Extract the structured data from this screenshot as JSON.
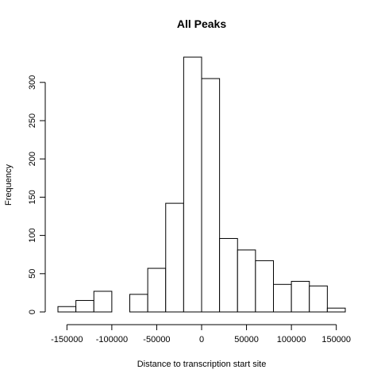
{
  "chart_data": {
    "type": "bar",
    "title": "All Peaks",
    "xlabel": "Distance to transcription start site",
    "ylabel": "Frequency",
    "xlim": [
      -160000,
      160000
    ],
    "ylim": [
      0,
      333
    ],
    "x_ticks": [
      -150000,
      -100000,
      -50000,
      0,
      50000,
      100000,
      150000
    ],
    "y_ticks": [
      0,
      50,
      100,
      150,
      200,
      250,
      300
    ],
    "bin_width": 20000,
    "bins": [
      {
        "start": -160000,
        "end": -140000,
        "count": 7
      },
      {
        "start": -140000,
        "end": -120000,
        "count": 15
      },
      {
        "start": -120000,
        "end": -100000,
        "count": 27
      },
      {
        "start": -100000,
        "end": -80000,
        "count": 0
      },
      {
        "start": -80000,
        "end": -60000,
        "count": 23
      },
      {
        "start": -60000,
        "end": -40000,
        "count": 57
      },
      {
        "start": -40000,
        "end": -20000,
        "count": 142
      },
      {
        "start": -20000,
        "end": 0,
        "count": 333
      },
      {
        "start": 0,
        "end": 20000,
        "count": 305
      },
      {
        "start": 20000,
        "end": 40000,
        "count": 96
      },
      {
        "start": 40000,
        "end": 60000,
        "count": 81
      },
      {
        "start": 60000,
        "end": 80000,
        "count": 67
      },
      {
        "start": 80000,
        "end": 100000,
        "count": 36
      },
      {
        "start": 100000,
        "end": 120000,
        "count": 40
      },
      {
        "start": 120000,
        "end": 140000,
        "count": 34
      },
      {
        "start": 140000,
        "end": 160000,
        "count": 5
      }
    ],
    "grid": false,
    "legend": "none"
  }
}
